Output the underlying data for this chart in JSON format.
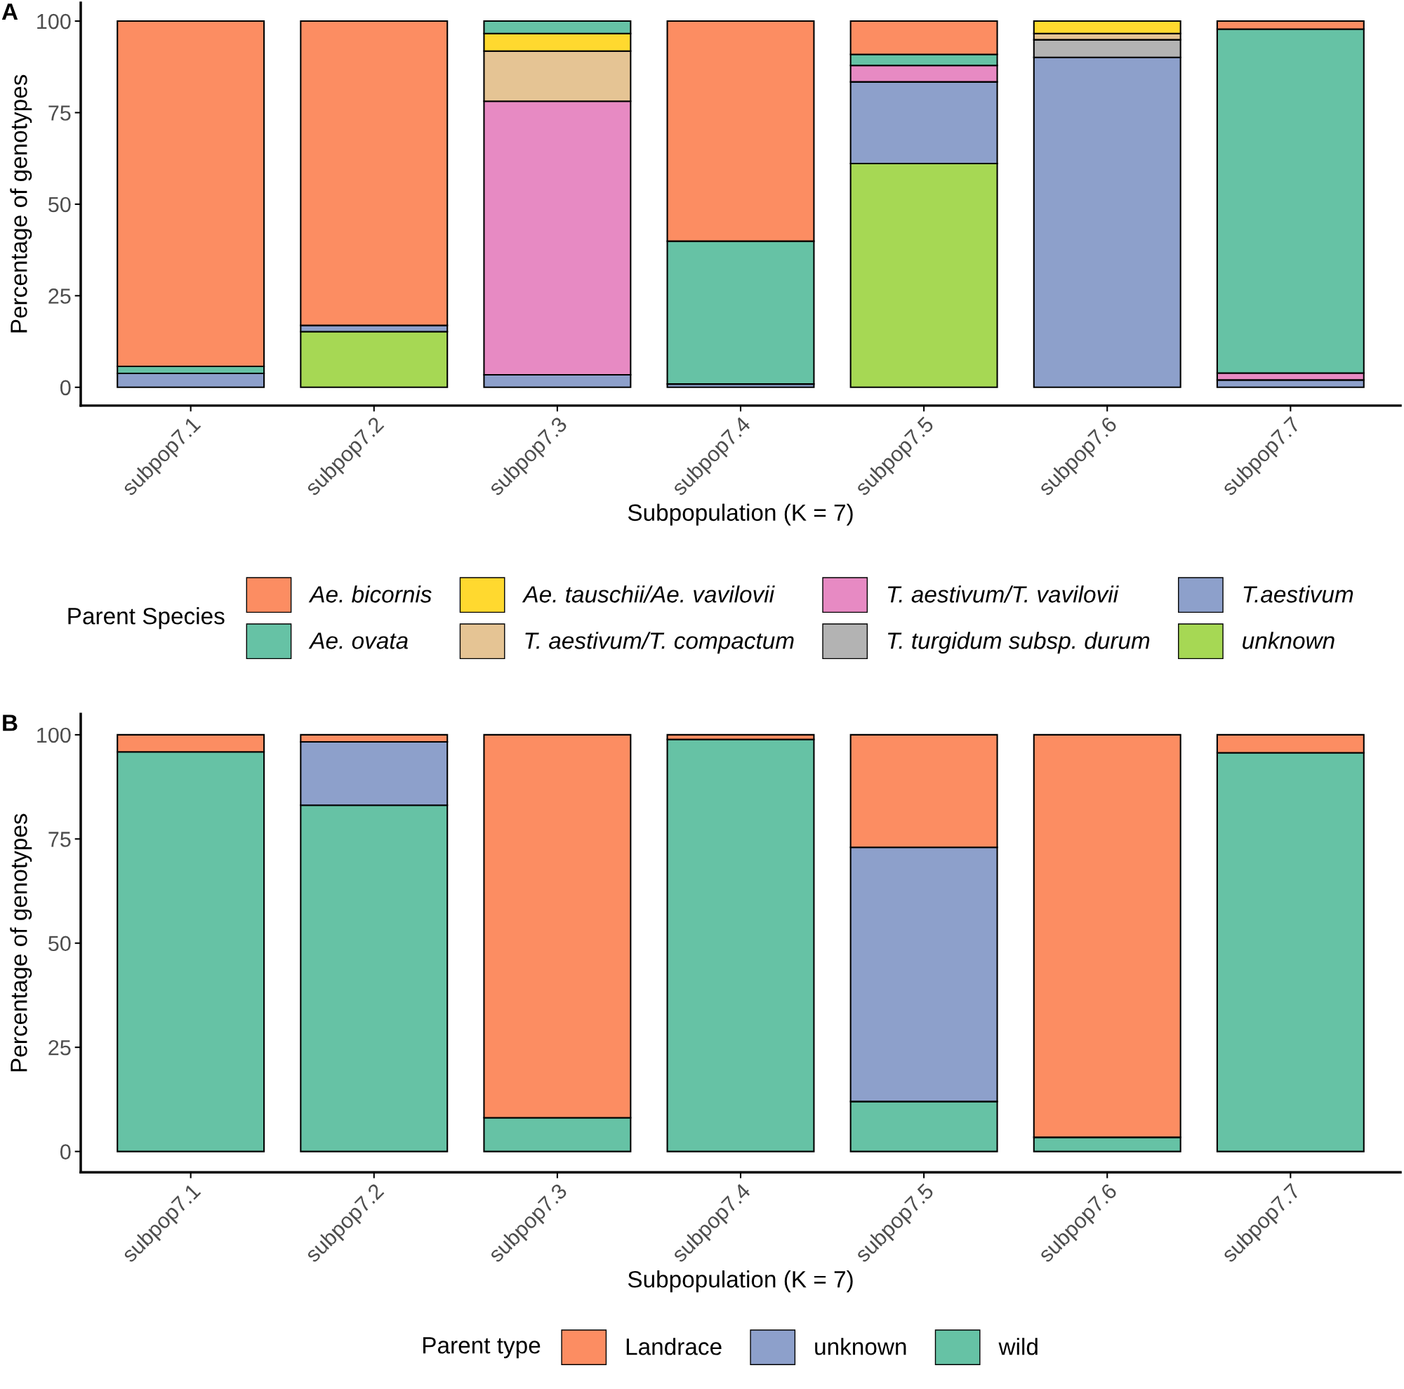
{
  "chart_data": [
    {
      "type": "bar",
      "stacked": true,
      "annotations": [
        "A"
      ],
      "xlabel": "Subpopulation (K = 7)",
      "ylabel": "Percentage of genotypes",
      "legend_title": "Parent Species",
      "legend": "bottom",
      "grid": false,
      "categories": [
        "subpop7.1",
        "subpop7.2",
        "subpop7.3",
        "subpop7.4",
        "subpop7.5",
        "subpop7.6",
        "subpop7.7"
      ],
      "ylim": [
        -5,
        105
      ],
      "yticks": [
        0,
        25,
        50,
        75,
        100
      ],
      "series": [
        {
          "name": "unknown",
          "color": "#a6d854",
          "values": [
            null,
            15.2,
            null,
            null,
            61.1,
            null,
            null
          ]
        },
        {
          "name": "T.aestivum",
          "color": "#8da0cb",
          "values": [
            3.8,
            1.7,
            3.4,
            0.9,
            22.3,
            90.1,
            2.0
          ]
        },
        {
          "name": "T. turgidum subsp. durum",
          "color": "#b3b3b3",
          "values": [
            null,
            null,
            null,
            null,
            null,
            4.8,
            null
          ]
        },
        {
          "name": "T. aestivum/T. vavilovii",
          "color": "#e78ac3",
          "values": [
            null,
            null,
            74.7,
            null,
            4.5,
            null,
            1.9
          ]
        },
        {
          "name": "T. aestivum/T. compactum",
          "color": "#e5c494",
          "values": [
            null,
            null,
            13.7,
            null,
            null,
            1.7,
            null
          ]
        },
        {
          "name": "Ae. tauschii/Ae. vavilovii",
          "color": "#ffd92f",
          "values": [
            null,
            null,
            4.8,
            null,
            null,
            3.4,
            null
          ]
        },
        {
          "name": "Ae. ovata",
          "color": "#66c2a5",
          "values": [
            1.9,
            null,
            3.4,
            39.0,
            3.0,
            null,
            93.9
          ]
        },
        {
          "name": "Ae. bicornis",
          "color": "#fc8d62",
          "values": [
            94.3,
            83.1,
            null,
            60.1,
            9.1,
            null,
            2.2
          ]
        }
      ]
    },
    {
      "type": "bar",
      "stacked": true,
      "annotations": [
        "B"
      ],
      "xlabel": "Subpopulation (K = 7)",
      "ylabel": "Percentage of genotypes",
      "legend_title": "Parent type",
      "legend": "bottom",
      "grid": false,
      "categories": [
        "subpop7.1",
        "subpop7.2",
        "subpop7.3",
        "subpop7.4",
        "subpop7.5",
        "subpop7.6",
        "subpop7.7"
      ],
      "ylim": [
        -5,
        105
      ],
      "yticks": [
        0,
        25,
        50,
        75,
        100
      ],
      "series": [
        {
          "name": "wild",
          "color": "#66c2a5",
          "values": [
            95.9,
            83.1,
            8.1,
            98.9,
            12.0,
            3.4,
            95.7
          ]
        },
        {
          "name": "unknown",
          "color": "#8da0cb",
          "values": [
            null,
            15.2,
            null,
            null,
            61.0,
            null,
            null
          ]
        },
        {
          "name": "Landrace",
          "color": "#fc8d62",
          "values": [
            4.1,
            1.7,
            91.9,
            1.1,
            27.0,
            96.6,
            4.3
          ]
        }
      ]
    }
  ]
}
